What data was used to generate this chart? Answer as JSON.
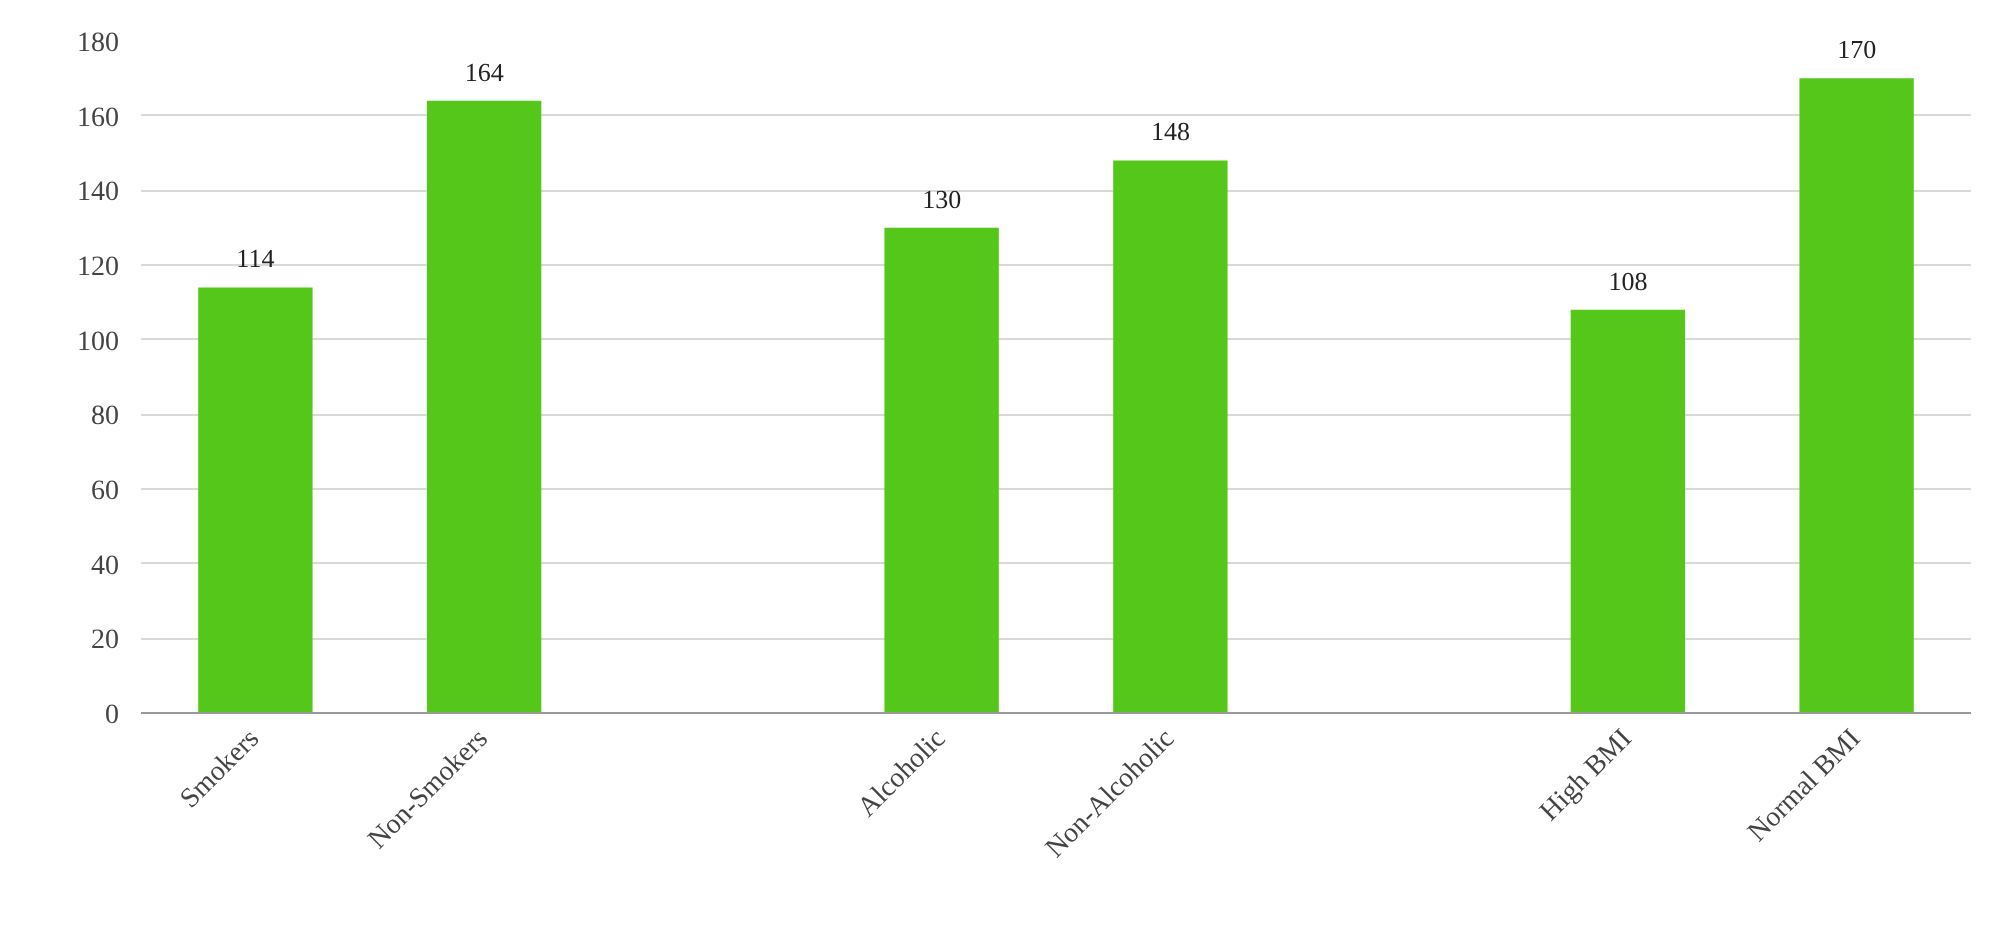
{
  "chart_data": {
    "type": "bar",
    "categories": [
      "Smokers",
      "Non-Smokers",
      null,
      "Alcoholic",
      "Non-Alcoholic",
      null,
      "High BMI",
      "Normal BMI"
    ],
    "values": [
      114,
      164,
      null,
      130,
      148,
      null,
      108,
      170
    ],
    "color": "#55c71a",
    "ylim": [
      0,
      180
    ],
    "yticks": [
      0,
      20,
      40,
      60,
      80,
      100,
      120,
      140,
      160,
      180
    ],
    "grid": "y",
    "data_labels": true
  }
}
